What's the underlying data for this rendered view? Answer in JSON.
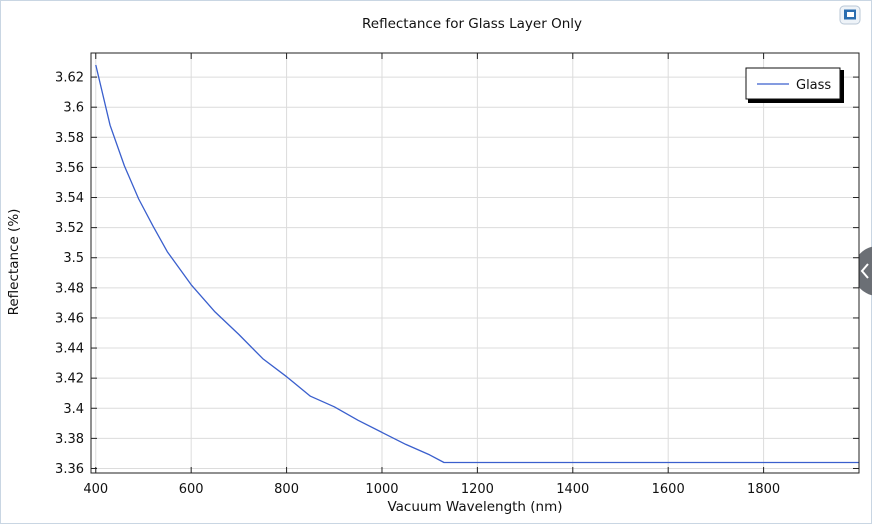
{
  "chart_data": {
    "type": "line",
    "title": "Reflectance for Glass Layer Only",
    "xlabel": "Vacuum Wavelength (nm)",
    "ylabel": "Reflectance (%)",
    "xlim": [
      390,
      2000
    ],
    "ylim": [
      3.357,
      3.636
    ],
    "x_ticks": [
      400,
      600,
      800,
      1000,
      1200,
      1400,
      1600,
      1800
    ],
    "y_ticks": [
      3.36,
      3.38,
      3.4,
      3.42,
      3.44,
      3.46,
      3.48,
      3.5,
      3.52,
      3.54,
      3.56,
      3.58,
      3.6,
      3.62
    ],
    "y_tick_labels": [
      "3.36",
      "3.38",
      "3.4",
      "3.42",
      "3.44",
      "3.46",
      "3.48",
      "3.5",
      "3.52",
      "3.54",
      "3.56",
      "3.58",
      "3.6",
      "3.62"
    ],
    "grid": true,
    "legend": "top-right",
    "series": [
      {
        "name": "Glass",
        "color": "#3a5fcd",
        "x": [
          400,
          430,
          460,
          490,
          520,
          550,
          600,
          650,
          700,
          750,
          800,
          850,
          900,
          950,
          1000,
          1050,
          1100,
          1130,
          1200,
          1400,
          1600,
          1800,
          2000
        ],
        "y": [
          3.628,
          3.588,
          3.561,
          3.539,
          3.521,
          3.504,
          3.482,
          3.464,
          3.449,
          3.433,
          3.421,
          3.408,
          3.401,
          3.392,
          3.384,
          3.376,
          3.369,
          3.364,
          3.364,
          3.364,
          3.364,
          3.364,
          3.364
        ]
      }
    ]
  },
  "ui": {
    "toolbar_icon": "window-restore-icon",
    "side_handle_icon": "collapse-chevron-icon"
  }
}
